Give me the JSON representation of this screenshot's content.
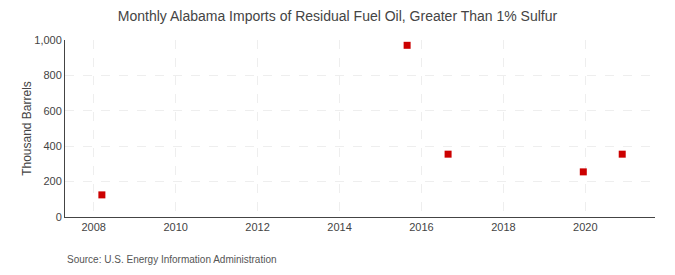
{
  "chart_data": {
    "type": "scatter",
    "title": "Monthly Alabama Imports of Residual Fuel Oil, Greater Than 1% Sulfur",
    "ylabel": "Thousand Barrels",
    "annotations": [
      "Source: U.S. Energy Information Administration"
    ],
    "x": [
      2008.2,
      2015.65,
      2016.65,
      2019.95,
      2020.9
    ],
    "values": [
      125,
      970,
      355,
      255,
      355
    ],
    "color": "#cc0000",
    "marker": "square",
    "xlim": [
      2007.3,
      2021.7
    ],
    "ylim": [
      0,
      1000
    ],
    "xticks": [
      2008,
      2010,
      2012,
      2014,
      2016,
      2018,
      2020
    ],
    "yticks": [
      0,
      200,
      400,
      600,
      800,
      {
        "value": 1000,
        "label": "1,000"
      }
    ],
    "grid": true
  }
}
